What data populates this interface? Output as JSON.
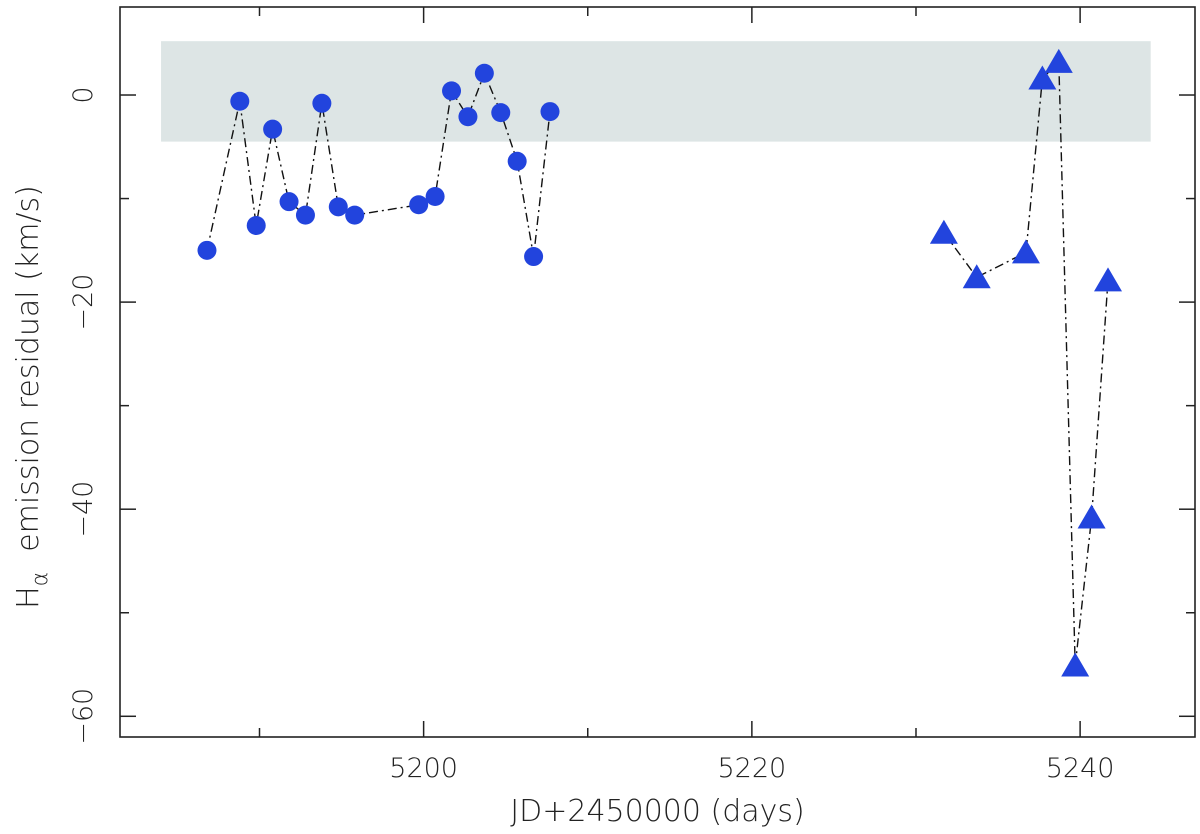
{
  "chart_data": {
    "type": "scatter",
    "title": "",
    "xlabel": "JD+2450000 (days)",
    "ylabel_main": "H",
    "ylabel_sub": "α",
    "ylabel_rest": "emission residual (km/s)",
    "xlim": [
      5181.5,
      5247
    ],
    "ylim": [
      -62,
      8.5
    ],
    "x_ticks": [
      5200,
      5220,
      5240
    ],
    "y_ticks": [
      0,
      -20,
      -40,
      -60
    ],
    "y_tick_labels": [
      "0",
      "−20",
      "−40",
      "−60"
    ],
    "band": {
      "y_from": -4.5,
      "y_to": 5.2,
      "x_from": 5184,
      "x_to": 5244.3,
      "color": "#dde5e5"
    },
    "grid": false,
    "marker_color": "#2244dd",
    "series": [
      {
        "marker": "circle",
        "x": [
          5186.8,
          5188.8,
          5189.8,
          5190.8,
          5191.8,
          5192.8,
          5193.8,
          5194.8,
          5195.8,
          5199.7,
          5200.7,
          5201.7,
          5202.7,
          5203.7,
          5204.7,
          5205.7,
          5206.7,
          5207.7
        ],
        "y": [
          -15.0,
          -0.6,
          -12.6,
          -3.3,
          -10.3,
          -11.6,
          -0.8,
          -10.8,
          -11.6,
          -10.6,
          -9.8,
          0.4,
          -2.1,
          2.1,
          -1.7,
          -6.4,
          -15.6,
          -1.6
        ]
      },
      {
        "marker": "triangle",
        "x": [
          5231.7,
          5233.7,
          5236.7,
          5237.7,
          5238.7,
          5239.7,
          5240.7,
          5241.7
        ],
        "y": [
          -13.3,
          -17.6,
          -15.2,
          1.6,
          3.2,
          -55.1,
          -40.8,
          -17.9
        ]
      }
    ]
  }
}
